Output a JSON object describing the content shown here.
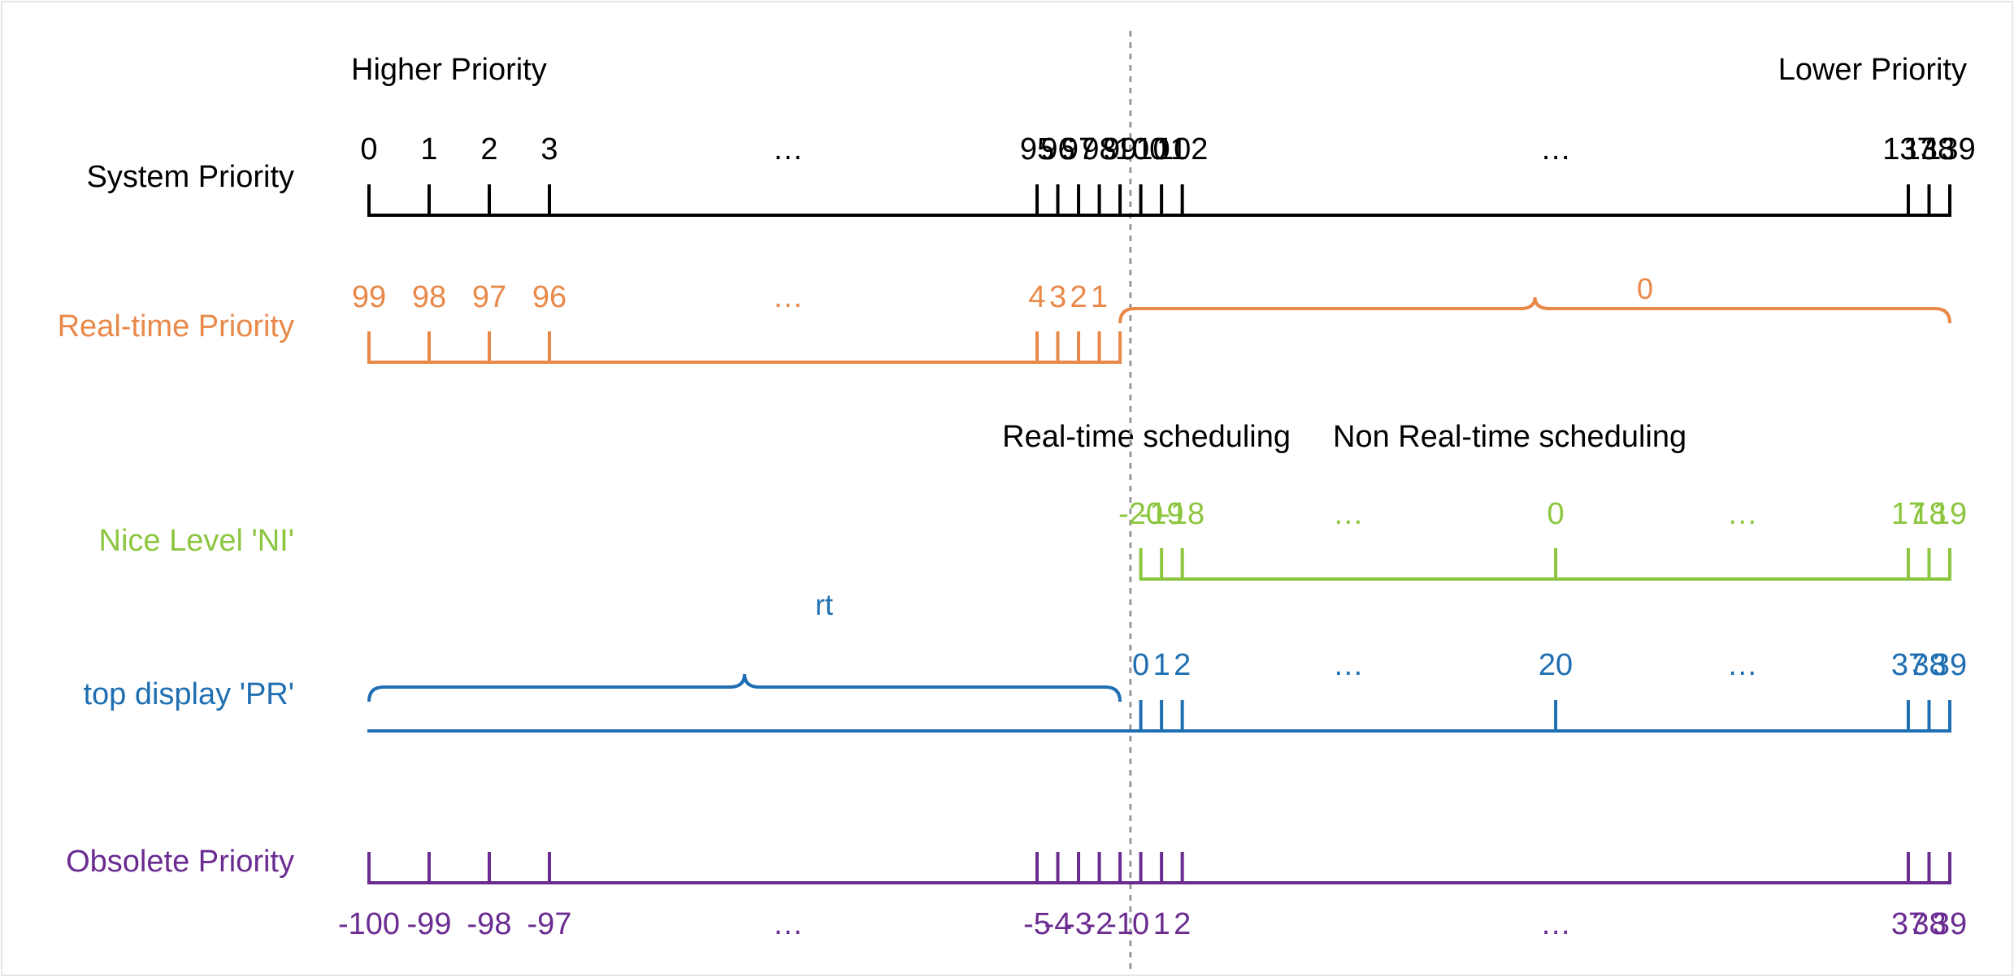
{
  "colors": {
    "system": "#000000",
    "realtime": "#e8894a",
    "nice": "#8cc63f",
    "top": "#1f6fb2",
    "obsolete": "#6b2c91",
    "divider": "#9a9a9a"
  },
  "header": {
    "higher": "Higher Priority",
    "lower": "Lower Priority"
  },
  "section_labels": {
    "realtime_sched": "Real-time scheduling",
    "nonrealtime_sched": "Non Real-time scheduling"
  },
  "rows": {
    "system": {
      "label": "System Priority",
      "ticks": [
        {
          "v": "0",
          "pos": 0
        },
        {
          "v": "1",
          "pos": 1
        },
        {
          "v": "2",
          "pos": 2
        },
        {
          "v": "3",
          "pos": 3
        },
        {
          "v": "…",
          "pos": 48,
          "gap": true
        },
        {
          "v": "95",
          "pos": 95
        },
        {
          "v": "96",
          "pos": 96
        },
        {
          "v": "97",
          "pos": 97
        },
        {
          "v": "98",
          "pos": 98
        },
        {
          "v": "99",
          "pos": 99
        },
        {
          "v": "100",
          "pos": 100
        },
        {
          "v": "101",
          "pos": 101
        },
        {
          "v": "102",
          "pos": 102
        },
        {
          "v": "…",
          "pos": 120,
          "gap": true
        },
        {
          "v": "137",
          "pos": 137
        },
        {
          "v": "138",
          "pos": 138
        },
        {
          "v": "139",
          "pos": 139
        }
      ]
    },
    "realtime": {
      "label": "Real-time Priority",
      "ticks": [
        {
          "v": "99",
          "pos": 0
        },
        {
          "v": "98",
          "pos": 1
        },
        {
          "v": "97",
          "pos": 2
        },
        {
          "v": "96",
          "pos": 3
        },
        {
          "v": "…",
          "pos": 48,
          "gap": true
        },
        {
          "v": "4",
          "pos": 95
        },
        {
          "v": "3",
          "pos": 96
        },
        {
          "v": "2",
          "pos": 97
        },
        {
          "v": "1",
          "pos": 98
        }
      ],
      "brace_label": "0"
    },
    "nice": {
      "label": "Nice Level 'NI'",
      "ticks": [
        {
          "v": "-20",
          "pos": 100
        },
        {
          "v": "-19",
          "pos": 101
        },
        {
          "v": "-18",
          "pos": 102
        },
        {
          "v": "…",
          "pos": 110,
          "gap": true
        },
        {
          "v": "0",
          "pos": 120
        },
        {
          "v": "…",
          "pos": 129,
          "gap": true
        },
        {
          "v": "17",
          "pos": 137
        },
        {
          "v": "18",
          "pos": 138
        },
        {
          "v": "19",
          "pos": 139
        }
      ]
    },
    "top": {
      "label": "top display 'PR'",
      "brace_label": "rt",
      "ticks": [
        {
          "v": "0",
          "pos": 100
        },
        {
          "v": "1",
          "pos": 101
        },
        {
          "v": "2",
          "pos": 102
        },
        {
          "v": "…",
          "pos": 110,
          "gap": true
        },
        {
          "v": "20",
          "pos": 120
        },
        {
          "v": "…",
          "pos": 129,
          "gap": true
        },
        {
          "v": "37",
          "pos": 137
        },
        {
          "v": "38",
          "pos": 138
        },
        {
          "v": "39",
          "pos": 139
        }
      ]
    },
    "obsolete": {
      "label": "Obsolete Priority",
      "ticks": [
        {
          "v": "-100",
          "pos": 0
        },
        {
          "v": "-99",
          "pos": 1
        },
        {
          "v": "-98",
          "pos": 2
        },
        {
          "v": "-97",
          "pos": 3
        },
        {
          "v": "…",
          "pos": 48,
          "gap": true
        },
        {
          "v": "-5",
          "pos": 95
        },
        {
          "v": "-4",
          "pos": 96
        },
        {
          "v": "-3",
          "pos": 97
        },
        {
          "v": "-2",
          "pos": 98
        },
        {
          "v": "-1",
          "pos": 99
        },
        {
          "v": "0",
          "pos": 100
        },
        {
          "v": "1",
          "pos": 101
        },
        {
          "v": "2",
          "pos": 102
        },
        {
          "v": "…",
          "pos": 120,
          "gap": true
        },
        {
          "v": "37",
          "pos": 137
        },
        {
          "v": "38",
          "pos": 138
        },
        {
          "v": "39",
          "pos": 139
        }
      ]
    }
  }
}
